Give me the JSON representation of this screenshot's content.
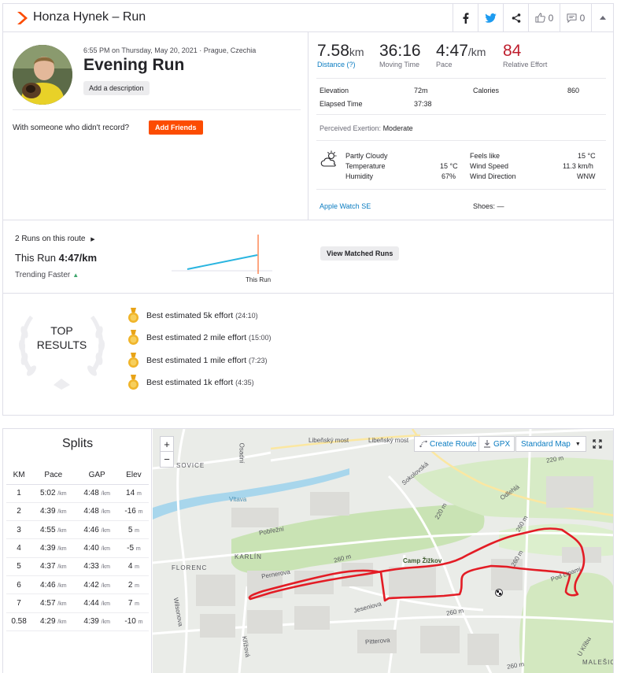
{
  "header": {
    "title": "Honza Hynek – Run",
    "kudos_count": "0",
    "comments_count": "0"
  },
  "activity": {
    "datetime": "6:55 PM on Thursday, May 20, 2021 · Prague, Czechia",
    "name": "Evening Run",
    "add_description": "Add a description",
    "with_someone": "With someone who didn't record?",
    "add_friends": "Add Friends"
  },
  "stats": {
    "distance": {
      "value": "7.58",
      "unit": "km",
      "label": "Distance (?)"
    },
    "moving_time": {
      "value": "36:16",
      "label": "Moving Time"
    },
    "pace": {
      "value": "4:47",
      "unit": "/km",
      "label": "Pace"
    },
    "relative_effort": {
      "value": "84",
      "label": "Relative Effort"
    },
    "elevation_label": "Elevation",
    "elevation": "72m",
    "calories_label": "Calories",
    "calories": "860",
    "elapsed_label": "Elapsed Time",
    "elapsed": "37:38",
    "perceived_label": "Perceived Exertion:",
    "perceived": "Moderate"
  },
  "weather": {
    "condition": "Partly Cloudy",
    "temperature_label": "Temperature",
    "temperature": "15 °C",
    "humidity_label": "Humidity",
    "humidity": "67%",
    "feels_like_label": "Feels like",
    "feels_like": "15 °C",
    "wind_speed_label": "Wind Speed",
    "wind_speed": "11.3 km/h",
    "wind_direction_label": "Wind Direction",
    "wind_direction": "WNW"
  },
  "device": "Apple Watch SE",
  "shoes": "Shoes: —",
  "route": {
    "runs_on_route": "2 Runs on this route",
    "this_run_label": "This Run",
    "this_run_pace": "4:47/km",
    "trend": "Trending Faster",
    "chart_marker": "This Run",
    "view_matched": "View Matched Runs"
  },
  "top_results": {
    "title_line1": "TOP",
    "title_line2": "RESULTS",
    "items": [
      {
        "name": "Best estimated 5k effort",
        "time": "(24:10)"
      },
      {
        "name": "Best estimated 2 mile effort",
        "time": "(15:00)"
      },
      {
        "name": "Best estimated 1 mile effort",
        "time": "(7:23)"
      },
      {
        "name": "Best estimated 1k effort",
        "time": "(4:35)"
      }
    ],
    "medal_color": "#f0b429"
  },
  "splits": {
    "title": "Splits",
    "headers": [
      "KM",
      "Pace",
      "GAP",
      "Elev"
    ],
    "pace_unit": "/km",
    "elev_unit": "m",
    "rows": [
      {
        "km": "1",
        "pace": "5:02",
        "gap": "4:48",
        "elev": "14"
      },
      {
        "km": "2",
        "pace": "4:39",
        "gap": "4:48",
        "elev": "-16"
      },
      {
        "km": "3",
        "pace": "4:55",
        "gap": "4:46",
        "elev": "5"
      },
      {
        "km": "4",
        "pace": "4:39",
        "gap": "4:40",
        "elev": "-5"
      },
      {
        "km": "5",
        "pace": "4:37",
        "gap": "4:33",
        "elev": "4"
      },
      {
        "km": "6",
        "pace": "4:46",
        "gap": "4:42",
        "elev": "2"
      },
      {
        "km": "7",
        "pace": "4:57",
        "gap": "4:44",
        "elev": "7"
      },
      {
        "km": "0.58",
        "pace": "4:29",
        "gap": "4:39",
        "elev": "-10"
      }
    ]
  },
  "map": {
    "zoom_in": "+",
    "zoom_out": "−",
    "create_route": "Create Route",
    "gpx": "GPX",
    "map_type": "Standard Map",
    "labels": {
      "libensky1": "Libeňský most",
      "libensky2": "Libeňský most",
      "sokolovska": "Sokolovská",
      "osadni": "Osadní",
      "vltava": "Vltava",
      "karlin": "KARLÍN",
      "florenc": "FLORENC",
      "pobrezni": "Pobřežní",
      "pernerova": "Pernerova",
      "camp": "Camp Žižkov",
      "jeseniova": "Jeseniova",
      "odlehla": "Odlehlá",
      "pod_lipami": "Pod Lipami",
      "pitterova": "Pitterova",
      "krizova": "Křížová",
      "wilsonova": "Wilsonova",
      "malesice": "MALEŠIC",
      "u_kribu": "U Křibu",
      "sovice": "SOVICE",
      "e220a": "220 m",
      "e220b": "220 m",
      "e260a": "260 m",
      "e260b": "260 m",
      "e260c": "260 m",
      "e260d": "260 m",
      "e260e": "260 m"
    },
    "route_color": "#e31c25",
    "river_color": "#a8d6ec",
    "park_color": "#c9e3b4"
  },
  "colors": {
    "brand": "#fc4c02",
    "link": "#0a7cc1",
    "relative_effort": "#be1e2d",
    "trend_up": "#3fa66d"
  }
}
